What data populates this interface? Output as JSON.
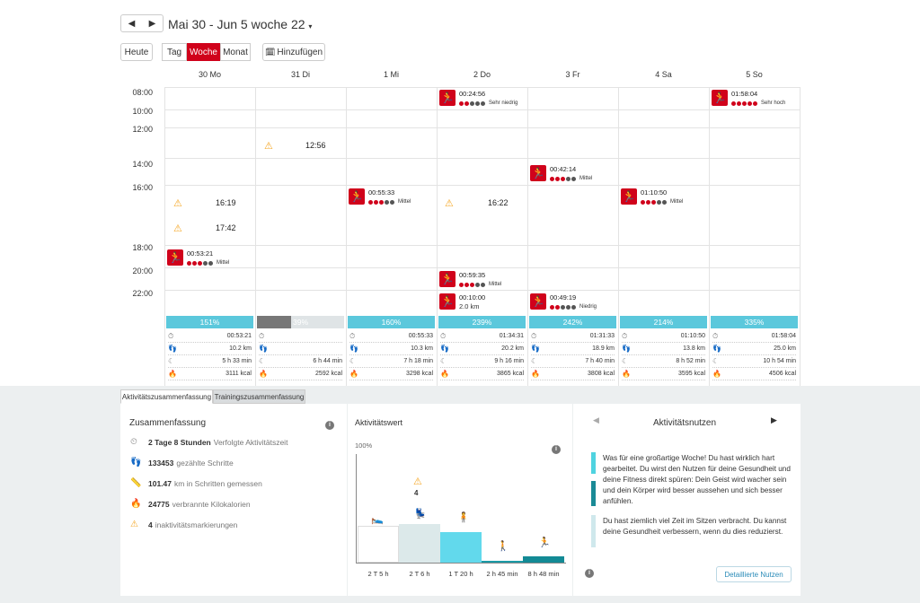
{
  "header": {
    "prev_icon": "◀",
    "next_icon": "▶",
    "title": "Mai 30 - Jun 5 woche 22",
    "today": "Heute",
    "view_day": "Tag",
    "view_week": "Woche",
    "view_month": "Monat",
    "add": "Hinzufügen"
  },
  "days": [
    "30 Mo",
    "31 Di",
    "1 Mi",
    "2 Do",
    "3 Fr",
    "4 Sa",
    "5 So"
  ],
  "times": [
    "08:00",
    "10:00",
    "12:00",
    "14:00",
    "16:00",
    "18:00",
    "20:00",
    "22:00"
  ],
  "activities": [
    {
      "duration": "00:24:56",
      "level": "Sehr niedrig",
      "dots": [
        1,
        1,
        0,
        0,
        0
      ]
    },
    {
      "duration": "01:58:04",
      "level": "Sehr hoch",
      "dots": [
        1,
        1,
        1,
        1,
        1
      ]
    },
    {
      "duration": "00:42:14",
      "level": "Mittel",
      "dots": [
        1,
        1,
        1,
        0,
        0
      ]
    },
    {
      "duration": "00:55:33",
      "level": "Mittel",
      "dots": [
        1,
        1,
        1,
        0,
        0
      ]
    },
    {
      "duration": "01:10:50",
      "level": "Mittel",
      "dots": [
        1,
        1,
        1,
        0,
        0
      ]
    },
    {
      "duration": "00:53:21",
      "level": "Mittel",
      "dots": [
        1,
        1,
        1,
        0,
        0
      ]
    },
    {
      "duration": "00:59:35",
      "level": "Mittel",
      "dots": [
        1,
        1,
        1,
        0,
        0
      ]
    },
    {
      "duration": "00:10:00",
      "level": "2.0 km",
      "dots": []
    },
    {
      "duration": "00:49:19",
      "level": "Niedrig",
      "dots": [
        1,
        1,
        0,
        0,
        0
      ]
    }
  ],
  "inactivity": [
    "12:56",
    "16:19",
    "17:42",
    "16:22"
  ],
  "day_summaries": [
    {
      "percent": "151%",
      "pct": 1.0,
      "color": "#5bc8dc",
      "time": "00:53:21",
      "dist": "10.2 km",
      "sleep": "5 h 33 min",
      "kcal": "3111 kcal"
    },
    {
      "percent": "39%",
      "pct": 0.39,
      "color": "#777777",
      "time": "",
      "dist": "",
      "sleep": "6 h 44 min",
      "kcal": "2592 kcal"
    },
    {
      "percent": "160%",
      "pct": 1.0,
      "color": "#5bc8dc",
      "time": "00:55:33",
      "dist": "10.3 km",
      "sleep": "7 h 18 min",
      "kcal": "3298 kcal"
    },
    {
      "percent": "239%",
      "pct": 1.0,
      "color": "#5bc8dc",
      "time": "01:34:31",
      "dist": "20.2 km",
      "sleep": "9 h 16 min",
      "kcal": "3865 kcal"
    },
    {
      "percent": "242%",
      "pct": 1.0,
      "color": "#5bc8dc",
      "time": "01:31:33",
      "dist": "18.9 km",
      "sleep": "7 h 40 min",
      "kcal": "3808 kcal"
    },
    {
      "percent": "214%",
      "pct": 1.0,
      "color": "#5bc8dc",
      "time": "01:10:50",
      "dist": "13.8 km",
      "sleep": "8 h 52 min",
      "kcal": "3595 kcal"
    },
    {
      "percent": "335%",
      "pct": 1.0,
      "color": "#5bc8dc",
      "time": "01:58:04",
      "dist": "25.0 km",
      "sleep": "10 h 54 min",
      "kcal": "4506 kcal"
    }
  ],
  "tabs": {
    "activity": "Aktivitätszusammenfassung",
    "training": "Trainingszusammenfassung"
  },
  "summary": {
    "title": "Zusammenfassung",
    "rows": [
      {
        "value": "2 Tage 8 Stunden",
        "label": "Verfolgte Aktivitätszeit"
      },
      {
        "value": "133453",
        "label": "gezählte Schritte"
      },
      {
        "value": "101.47",
        "label": "km in Schritten gemessen"
      },
      {
        "value": "24775",
        "label": "verbrannte Kilokalorien"
      },
      {
        "value": "4",
        "label": "inaktivitätsmarkierungen"
      }
    ]
  },
  "activity_value": {
    "title": "Aktivitätswert",
    "ymax": "100%",
    "marker_count": "4",
    "bars": [
      {
        "label": "2 T 5 h",
        "value": 0.47
      },
      {
        "label": "2 T 6 h",
        "value": 0.49
      },
      {
        "label": "1 T 20 h",
        "value": 0.39
      },
      {
        "label": "2 h 45 min",
        "value": 0.02
      },
      {
        "label": "8 h 48 min",
        "value": 0.08
      }
    ]
  },
  "benefit": {
    "title": "Aktivitätsnutzen",
    "text1": "Was für eine großartige Woche! Du hast wirklich hart gearbeitet. Du wirst den Nutzen für deine Gesundheit und deine Fitness direkt spüren: Dein Geist wird wacher sein und dein Körper wird besser aussehen und sich besser anfühlen.",
    "text2": "Du hast ziemlich viel Zeit im Sitzen verbracht. Du kannst deine Gesundheit verbessern, wenn du dies reduzierst.",
    "button": "Detaillierte Nutzen"
  },
  "colors": {
    "accent": "#d0021b",
    "cyan": "#5bc8dc",
    "teal": "#1a8a96",
    "warning": "#f5a623"
  }
}
